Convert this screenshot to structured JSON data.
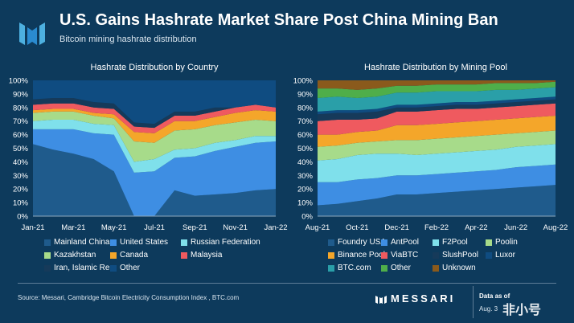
{
  "header": {
    "title": "U.S. Gains Hashrate Market Share Post China Mining Ban",
    "subtitle": "Bitcoin mining hashrate distribution"
  },
  "footer": {
    "source": "Source: Messari, Cambridge Bitcoin Electricity Consumption Index , BTC.com",
    "brand": "MESSARI",
    "data_as_of_label": "Data as of",
    "data_as_of_date": "Aug. 3",
    "watermark": "非小号"
  },
  "chart_data": [
    {
      "type": "area",
      "stacked": true,
      "title": "Hashrate Distribution by Country",
      "x": [
        "Jan-21",
        "Feb-21",
        "Mar-21",
        "Apr-21",
        "May-21",
        "Jun-21",
        "Jul-21",
        "Aug-21",
        "Sep-21",
        "Oct-21",
        "Nov-21",
        "Dec-21",
        "Jan-22"
      ],
      "x_tick_labels": [
        "Jan-21",
        "Mar-21",
        "May-21",
        "Jul-21",
        "Sep-21",
        "Nov-21",
        "Jan-22"
      ],
      "ylim": [
        0,
        100
      ],
      "y_tick_labels": [
        "0%",
        "10%",
        "20%",
        "30%",
        "40%",
        "50%",
        "60%",
        "70%",
        "80%",
        "90%",
        "100%"
      ],
      "grid": false,
      "legend_position": "bottom",
      "series": [
        {
          "name": "Mainland China",
          "color": "#1f5b8c",
          "values": [
            53,
            49,
            46,
            42,
            33,
            0,
            0,
            19,
            15,
            16,
            17,
            19,
            20
          ]
        },
        {
          "name": "United States",
          "color": "#3e8ee3",
          "values": [
            11,
            15,
            18,
            19,
            27,
            32,
            33,
            24,
            29,
            32,
            34,
            35,
            35
          ]
        },
        {
          "name": "Russian Federation",
          "color": "#7fe0eb",
          "values": [
            6,
            7,
            7,
            7,
            7,
            8,
            9,
            6,
            6,
            6,
            5,
            5,
            4
          ]
        },
        {
          "name": "Kazakhstan",
          "color": "#a7db8a",
          "values": [
            6,
            6,
            6,
            6,
            5,
            15,
            12,
            14,
            14,
            13,
            13,
            12,
            11
          ]
        },
        {
          "name": "Canada",
          "color": "#f4a62a",
          "values": [
            2,
            2,
            2,
            2,
            3,
            7,
            7,
            7,
            6,
            6,
            7,
            7,
            7
          ]
        },
        {
          "name": "Malaysia",
          "color": "#ef5a5f",
          "values": [
            4,
            4,
            4,
            4,
            4,
            4,
            4,
            4,
            4,
            4,
            4,
            4,
            3
          ]
        },
        {
          "name": "Iran, Islamic Rep.",
          "color": "#163a5a",
          "values": [
            4,
            4,
            4,
            4,
            4,
            3,
            3,
            3,
            3,
            3,
            0,
            0,
            0
          ]
        },
        {
          "name": "Other",
          "color": "#0f4c81",
          "values": [
            14,
            13,
            13,
            16,
            17,
            31,
            32,
            23,
            23,
            20,
            20,
            18,
            20
          ]
        }
      ]
    },
    {
      "type": "area",
      "stacked": true,
      "title": "Hashrate Distribution by Mining Pool",
      "x": [
        "Aug-21",
        "Sep-21",
        "Oct-21",
        "Nov-21",
        "Dec-21",
        "Jan-22",
        "Feb-22",
        "Mar-22",
        "Apr-22",
        "May-22",
        "Jun-22",
        "Jul-22",
        "Aug-22"
      ],
      "x_tick_labels": [
        "Aug-21",
        "Oct-21",
        "Dec-21",
        "Feb-22",
        "Apr-22",
        "Jun-22",
        "Aug-22"
      ],
      "ylim": [
        0,
        100
      ],
      "y_tick_labels": [
        "0%",
        "10%",
        "20%",
        "30%",
        "40%",
        "50%",
        "60%",
        "70%",
        "80%",
        "90%",
        "100%"
      ],
      "grid": false,
      "legend_position": "bottom",
      "series": [
        {
          "name": "Foundry USA",
          "color": "#1f5b8c",
          "values": [
            8,
            9,
            11,
            13,
            16,
            16,
            17,
            18,
            19,
            20,
            21,
            22,
            23
          ]
        },
        {
          "name": "AntPool",
          "color": "#3e8ee3",
          "values": [
            17,
            16,
            16,
            15,
            14,
            14,
            14,
            14,
            14,
            14,
            15,
            15,
            15
          ]
        },
        {
          "name": "F2Pool",
          "color": "#7fe0eb",
          "values": [
            16,
            17,
            18,
            18,
            16,
            15,
            15,
            15,
            15,
            15,
            15,
            15,
            15
          ]
        },
        {
          "name": "Poolin",
          "color": "#a7db8a",
          "values": [
            10,
            10,
            9,
            9,
            10,
            11,
            11,
            11,
            11,
            11,
            10,
            10,
            10
          ]
        },
        {
          "name": "Binance Pool",
          "color": "#f4a62a",
          "values": [
            9,
            8,
            8,
            8,
            11,
            11,
            11,
            11,
            11,
            11,
            11,
            11,
            11
          ]
        },
        {
          "name": "ViaBTC",
          "color": "#ef5a5f",
          "values": [
            10,
            11,
            9,
            9,
            10,
            10,
            10,
            10,
            9,
            9,
            9,
            9,
            9
          ]
        },
        {
          "name": "SlushPool",
          "color": "#163a5a",
          "values": [
            5,
            5,
            5,
            5,
            3,
            3,
            3,
            3,
            3,
            3,
            3,
            3,
            3
          ]
        },
        {
          "name": "Luxor",
          "color": "#0f4c81",
          "values": [
            2,
            2,
            2,
            2,
            2,
            2,
            2,
            2,
            2,
            2,
            2,
            2,
            2
          ]
        },
        {
          "name": "BTC.com",
          "color": "#2a9fa8",
          "values": [
            10,
            10,
            9,
            9,
            9,
            9,
            9,
            8,
            8,
            8,
            7,
            7,
            7
          ]
        },
        {
          "name": "Other",
          "color": "#4fae4a",
          "values": [
            7,
            6,
            6,
            6,
            5,
            5,
            5,
            5,
            5,
            5,
            5,
            4,
            4
          ]
        },
        {
          "name": "Unknown",
          "color": "#8a5a1c",
          "values": [
            6,
            6,
            7,
            6,
            4,
            4,
            3,
            3,
            3,
            2,
            2,
            2,
            1
          ]
        }
      ]
    }
  ]
}
